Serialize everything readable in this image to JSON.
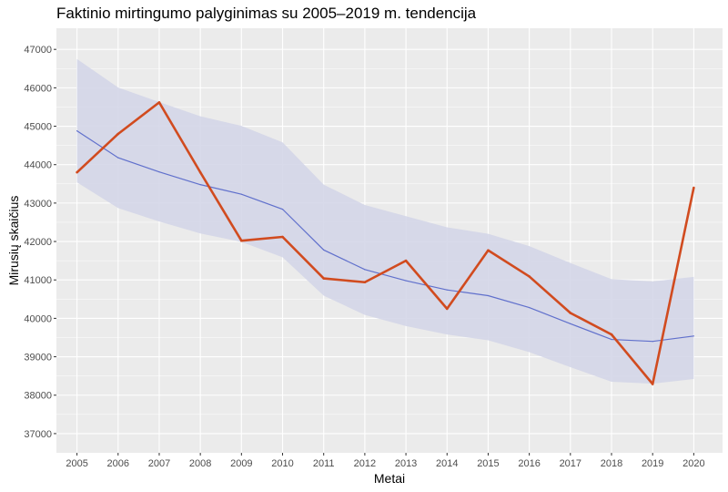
{
  "chart_data": {
    "type": "line",
    "title": "Faktinio mirtingumo palyginimas su 2005–2019 m. tendencija",
    "xlabel": "Metai",
    "ylabel": "Mirusių skaičius",
    "x": [
      2005,
      2006,
      2007,
      2008,
      2009,
      2010,
      2011,
      2012,
      2013,
      2014,
      2015,
      2016,
      2017,
      2018,
      2019,
      2020
    ],
    "xlim": [
      2004.5,
      2020.7
    ],
    "ylim": [
      36500,
      47550
    ],
    "yticks": [
      37000,
      38000,
      39000,
      40000,
      41000,
      42000,
      43000,
      44000,
      45000,
      46000,
      47000
    ],
    "grid": true,
    "series": [
      {
        "role": "actual",
        "color": "#d14b1f",
        "values": [
          43800,
          44800,
          45620,
          43800,
          42020,
          42120,
          41040,
          40940,
          41500,
          40250,
          41770,
          41090,
          40140,
          39580,
          38290,
          43400
        ]
      },
      {
        "role": "trend",
        "color": "#6070cc",
        "values": [
          44880,
          44180,
          43810,
          43480,
          43230,
          42840,
          41780,
          41270,
          40980,
          40740,
          40590,
          40280,
          39860,
          39450,
          39400,
          39540
        ]
      }
    ],
    "band": {
      "color": "#d4d6e8",
      "lower": [
        43540,
        42870,
        42520,
        42210,
        41990,
        41590,
        40590,
        40090,
        39800,
        39580,
        39430,
        39120,
        38730,
        38350,
        38300,
        38420
      ],
      "upper": [
        46750,
        46010,
        45630,
        45260,
        45010,
        44580,
        43480,
        42950,
        42660,
        42370,
        42200,
        41880,
        41440,
        41020,
        40960,
        41080
      ]
    }
  }
}
